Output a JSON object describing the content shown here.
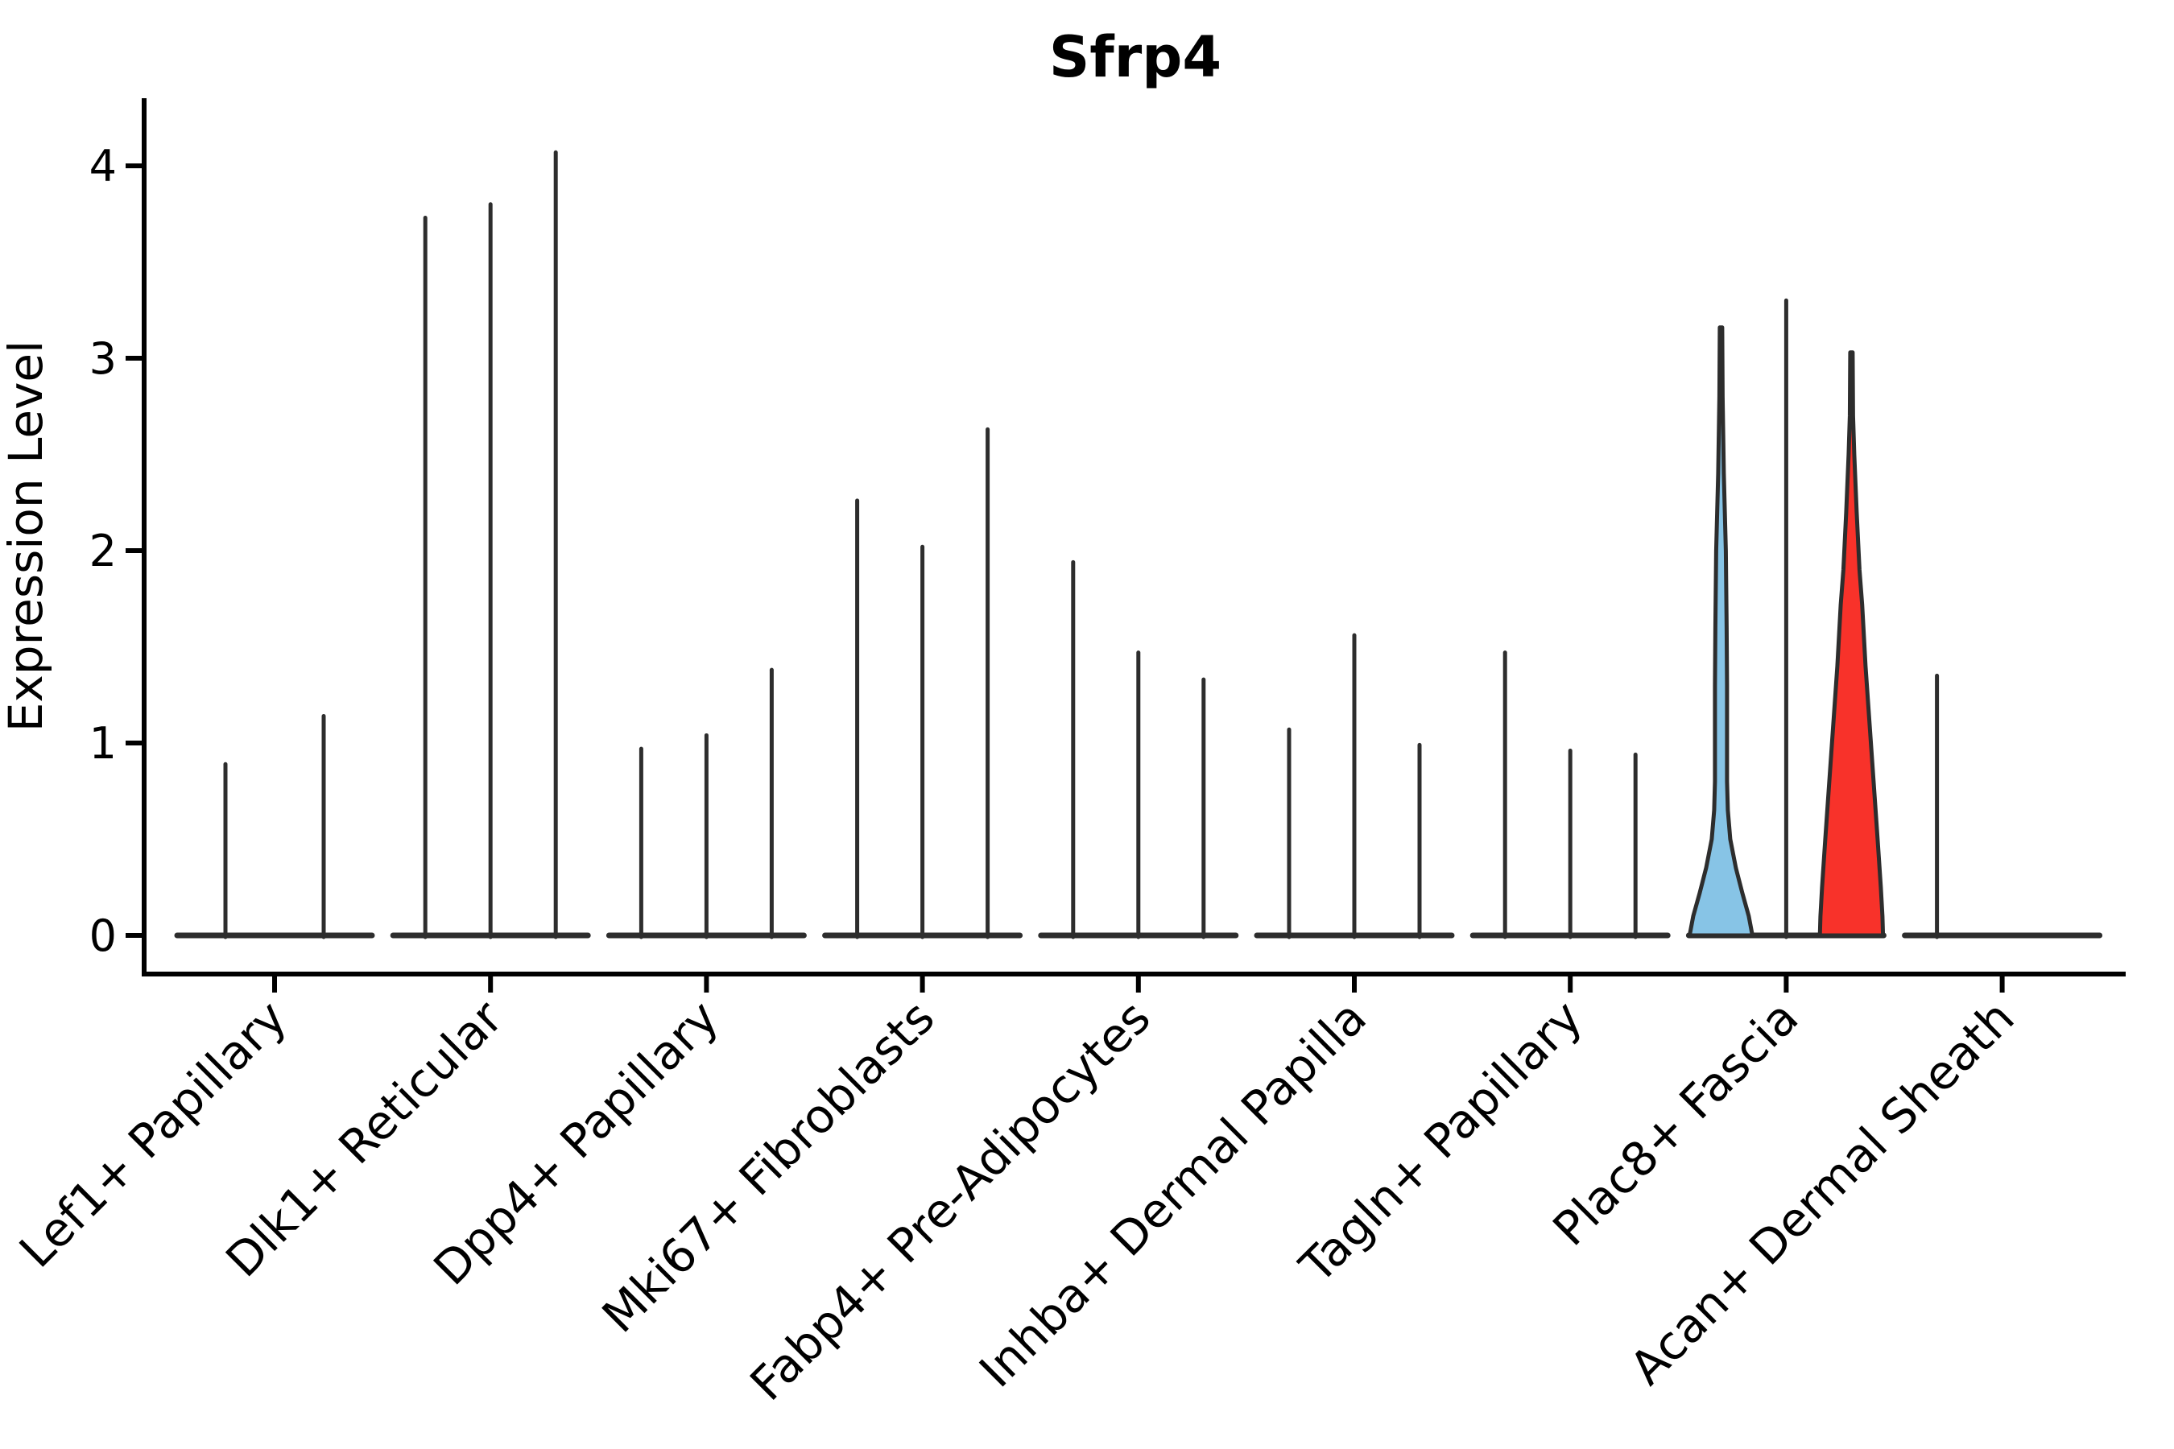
{
  "chart_data": {
    "type": "violin",
    "title": "Sfrp4",
    "ylabel": "Expression Level",
    "ytick_labels": [
      "0",
      "1",
      "2",
      "3",
      "4"
    ],
    "ytick_values": [
      0,
      1,
      2,
      3,
      4
    ],
    "ylim": [
      -0.2,
      4.35
    ],
    "grid": "off",
    "legend": "none",
    "colors": {
      "violin_line": "#2d2d2d",
      "axis": "#000000",
      "text": "#000000",
      "highlight_blue_fill": "#87c4e6",
      "highlight_red_fill": "#f8322a"
    },
    "categories": [
      "Lef1+ Papillary",
      "Dlk1+ Reticular",
      "Dpp4+ Papillary",
      "Mki67+ Fibroblasts",
      "Fabp4+ Pre-Adipocytes",
      "Inhba+ Dermal Papilla",
      "Tagln+ Papillary",
      "Plac8+ Fascia",
      "Acan+ Dermal Sheath"
    ],
    "groups": [
      {
        "category": "Lef1+ Papillary",
        "violins": [
          {
            "offset": -61,
            "peak": 0.89
          },
          {
            "offset": 61,
            "peak": 1.14
          }
        ]
      },
      {
        "category": "Dlk1+ Reticular",
        "violins": [
          {
            "offset": -81,
            "peak": 3.73
          },
          {
            "offset": 0,
            "peak": 3.8
          },
          {
            "offset": 81,
            "peak": 4.07
          }
        ]
      },
      {
        "category": "Dpp4+ Papillary",
        "violins": [
          {
            "offset": -81,
            "peak": 0.97
          },
          {
            "offset": 0,
            "peak": 1.04
          },
          {
            "offset": 81,
            "peak": 1.38
          }
        ]
      },
      {
        "category": "Mki67+ Fibroblasts",
        "violins": [
          {
            "offset": -81,
            "peak": 2.26
          },
          {
            "offset": 0,
            "peak": 2.02
          },
          {
            "offset": 81,
            "peak": 2.63
          }
        ]
      },
      {
        "category": "Fabp4+ Pre-Adipocytes",
        "violins": [
          {
            "offset": -81,
            "peak": 1.94
          },
          {
            "offset": 0,
            "peak": 1.47
          },
          {
            "offset": 81,
            "peak": 1.33
          }
        ]
      },
      {
        "category": "Inhba+ Dermal Papilla",
        "violins": [
          {
            "offset": -81,
            "peak": 1.07
          },
          {
            "offset": 0,
            "peak": 1.56
          },
          {
            "offset": 81,
            "peak": 0.99
          }
        ]
      },
      {
        "category": "Tagln+ Papillary",
        "violins": [
          {
            "offset": -81,
            "peak": 1.47
          },
          {
            "offset": 0,
            "peak": 0.96
          },
          {
            "offset": 81,
            "peak": 0.94
          }
        ]
      },
      {
        "category": "Plac8+ Fascia",
        "violins": [
          {
            "offset": -81,
            "peak": 3.16,
            "fill": "highlight_blue_fill",
            "profile": [
              [
                3.16,
                1.5
              ],
              [
                2.8,
                2.0
              ],
              [
                2.4,
                3.5
              ],
              [
                2.0,
                6.0
              ],
              [
                1.6,
                7.0
              ],
              [
                1.3,
                7.5
              ],
              [
                1.0,
                7.5
              ],
              [
                0.8,
                7.5
              ],
              [
                0.65,
                8.5
              ],
              [
                0.5,
                11.5
              ],
              [
                0.35,
                18.5
              ],
              [
                0.22,
                26.5
              ],
              [
                0.1,
                34.5
              ],
              [
                0.0,
                39.0
              ]
            ]
          },
          {
            "offset": 0,
            "peak": 3.3
          },
          {
            "offset": 81,
            "peak": 3.03,
            "fill": "highlight_red_fill",
            "profile": [
              [
                3.03,
                1.5
              ],
              [
                2.7,
                2.0
              ],
              [
                2.5,
                3.5
              ],
              [
                2.2,
                6.5
              ],
              [
                1.9,
                10.0
              ],
              [
                1.72,
                13.3
              ],
              [
                1.4,
                17.5
              ],
              [
                1.1,
                22.5
              ],
              [
                0.8,
                27.5
              ],
              [
                0.5,
                32.5
              ],
              [
                0.25,
                36.5
              ],
              [
                0.1,
                38.5
              ],
              [
                0.0,
                39.2
              ]
            ]
          }
        ]
      },
      {
        "category": "Acan+ Dermal Sheath",
        "violins": [
          {
            "offset": -81,
            "peak": 1.35
          },
          {
            "offset": 0,
            "peak": 0
          },
          {
            "offset": 81,
            "peak": 0
          }
        ]
      }
    ]
  }
}
